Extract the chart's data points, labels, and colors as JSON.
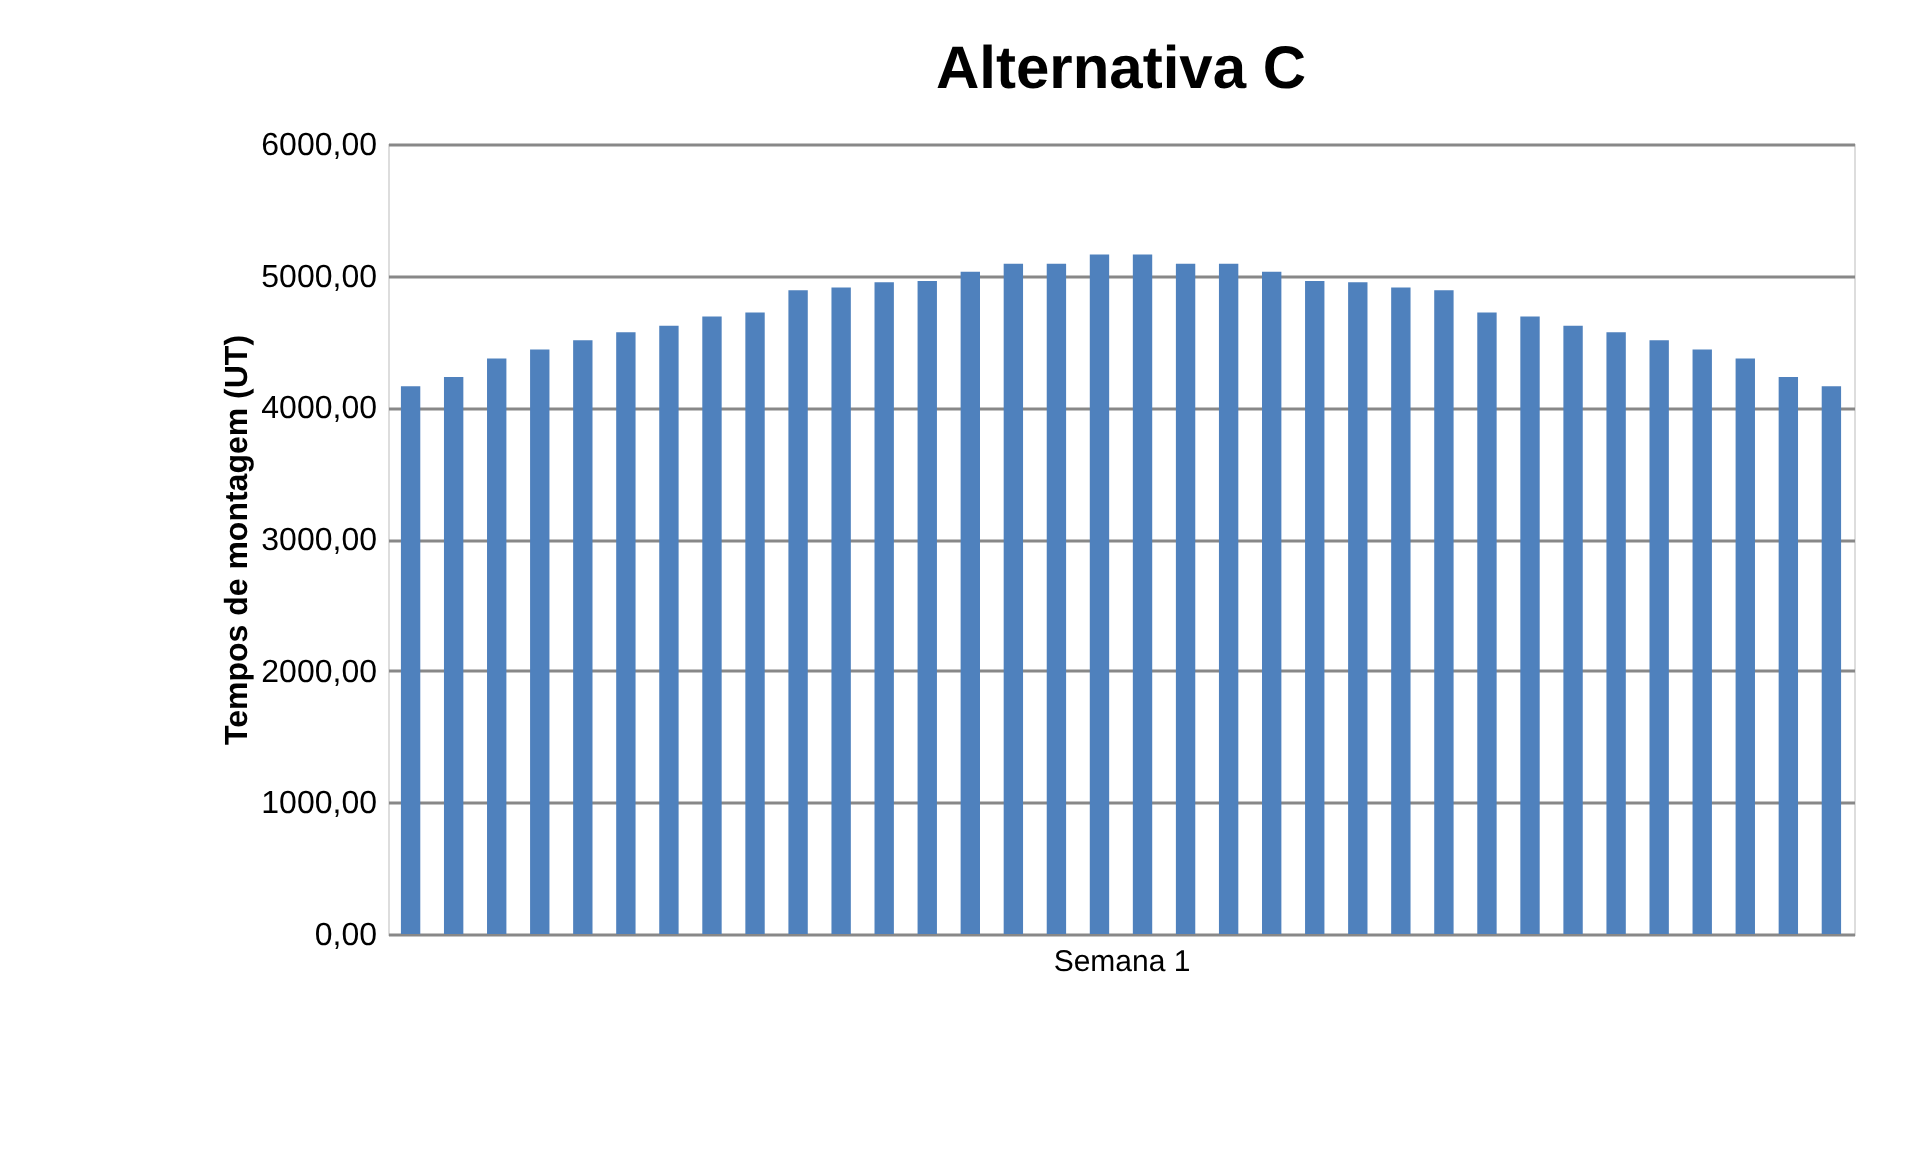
{
  "chart_data": {
    "type": "bar",
    "title": "Alternativa C",
    "xlabel": "Semana 1",
    "ylabel": "Tempos de montagem (UT)",
    "categories": [
      null,
      null,
      null,
      null,
      null,
      null,
      null,
      null,
      null,
      null,
      null,
      null,
      null,
      null,
      null,
      null,
      null,
      null,
      null,
      null,
      null,
      null,
      null,
      null,
      null,
      null,
      null,
      null,
      null,
      null,
      null,
      null,
      null,
      null
    ],
    "values": [
      4160,
      4230,
      4370,
      4440,
      4510,
      4570,
      4620,
      4690,
      4720,
      4890,
      4910,
      4950,
      4960,
      5030,
      5090,
      5090,
      5160,
      5160,
      5090,
      5090,
      5030,
      4960,
      4950,
      4910,
      4890,
      4720,
      4690,
      4620,
      4570,
      4510,
      4440,
      4370,
      4230,
      4160
    ],
    "color": "#4f81bd",
    "ylim": [
      0,
      6000
    ],
    "yticks": [
      {
        "value": 0,
        "label": "0,00"
      },
      {
        "value": 1000,
        "label": "1000,00"
      },
      {
        "value": 2000,
        "label": "2000,00"
      },
      {
        "value": 3000,
        "label": "3000,00"
      },
      {
        "value": 4000,
        "label": "4000,00"
      },
      {
        "value": 5000,
        "label": "5000,00"
      },
      {
        "value": 6000,
        "label": "6000,00"
      }
    ],
    "grid": "y"
  }
}
